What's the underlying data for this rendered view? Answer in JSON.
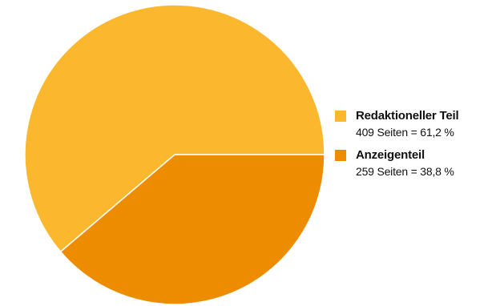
{
  "chart_data": {
    "type": "pie",
    "title": "",
    "legend_position": "right",
    "slices": [
      {
        "name": "Redaktioneller Teil",
        "value": 409,
        "percent": 61.2,
        "label": "409 Seiten = 61,2 %",
        "color": "#FBB72E"
      },
      {
        "name": "Anzeigenteil",
        "value": 259,
        "percent": 38.8,
        "label": "259 Seiten = 38,8 %",
        "color": "#EE8C00"
      }
    ]
  }
}
